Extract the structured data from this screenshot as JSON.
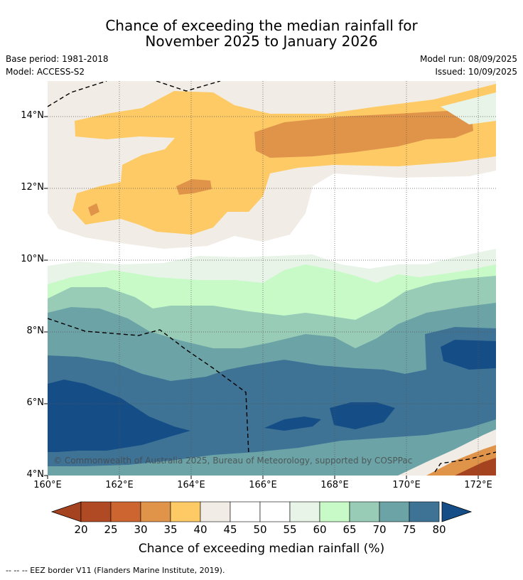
{
  "header": {
    "title_line1": "Chance of exceeding the median rainfall for",
    "title_line2": "November 2025 to January 2026"
  },
  "meta": {
    "base_period": "Base period: 1981-2018",
    "model": "Model: ACCESS-S2",
    "model_run": "Model run: 08/09/2025",
    "issued": "Issued: 10/09/2025"
  },
  "map": {
    "lat_labels": [
      "14°N",
      "12°N",
      "10°N",
      "8°N",
      "6°N",
      "4°N"
    ],
    "lon_labels": [
      "160°E",
      "162°E",
      "164°E",
      "166°E",
      "168°E",
      "170°E",
      "172°E"
    ],
    "copyright": "© Commonwealth of Australia 2025, Bureau of Meteorology, supported by COSPPac"
  },
  "colorbar": {
    "ticks": [
      "20",
      "25",
      "30",
      "35",
      "40",
      "45",
      "50",
      "55",
      "60",
      "65",
      "70",
      "75",
      "80"
    ],
    "colors": [
      "#a5421f",
      "#b04a25",
      "#cc6530",
      "#e0944a",
      "#fdca66",
      "#f1ede6",
      "#ffffff",
      "#ffffff",
      "#e8f4e8",
      "#c7fac7",
      "#98ccb6",
      "#6ca3a6",
      "#3e7396",
      "#154e86"
    ],
    "label": "Chance of exceeding median rainfall (%)"
  },
  "footer": {
    "legend": "--  --  -- EEZ border V11 (Flanders Marine Institute, 2019)."
  }
}
